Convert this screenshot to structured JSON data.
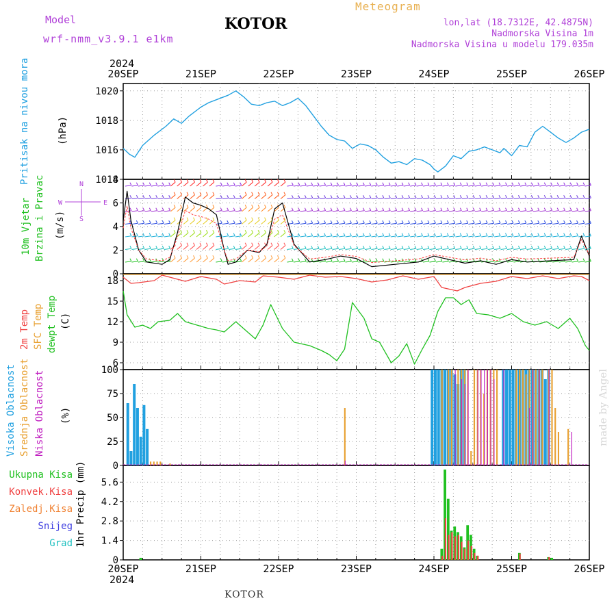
{
  "header": {
    "model_label": "Model",
    "model_name": "wrf-nmm_v3.9.1 e1km",
    "town": "KOTOR",
    "meteogram_title": "Meteogram",
    "lonlat": "lon,lat (18.7312E, 42.4875N)",
    "elevation": "Nadmorska Visina 1m",
    "model_elevation": "Nadmorska Visina u modelu 179.035m",
    "year_top": "2024",
    "year_bottom": "2024",
    "footer_town": "KOTOR",
    "made_by": "made by Angel"
  },
  "panel_labels": {
    "pressure": {
      "name": "Pritisak na nivou mora",
      "unit": "(hPa)",
      "color": "#20a0e0"
    },
    "wind": {
      "name1": "10m Vjetar",
      "name2": "Brzina i Pravac",
      "unit": "(m/s)",
      "color": "#20c020"
    },
    "compass": {
      "n": "N",
      "s": "S",
      "w": "W",
      "e": "E",
      "color": "#b040d8"
    },
    "temp": {
      "t2m": "2m Temp",
      "sfc": "SFC Temp",
      "dewpt": "dewpt Temp",
      "unit": "(C)",
      "colors": [
        "#f04040",
        "#e8a030",
        "#20c020"
      ]
    },
    "cloud": {
      "high": "Visoka Oblacnost",
      "mid": "Srednja Oblacnost",
      "low": "Niska Oblacnost",
      "unit": "(%)",
      "colors": [
        "#20a0e0",
        "#e8a030",
        "#c020c0"
      ]
    },
    "precip": {
      "unit": "1hr Precip (mm)",
      "legend": [
        {
          "label": "Ukupna Kisa",
          "color": "#20c020"
        },
        {
          "label": "Konvek.Kisa",
          "color": "#f04040"
        },
        {
          "label": "Zaledj.Kisa",
          "color": "#f08030"
        },
        {
          "label": "Snijeg",
          "color": "#4040e0"
        },
        {
          "label": "Grad",
          "color": "#20c0c0"
        }
      ]
    }
  },
  "chart_data": [
    {
      "type": "line",
      "name": "pressure",
      "x_ticks": [
        "20SEP",
        "21SEP",
        "22SEP",
        "23SEP",
        "24SEP",
        "25SEP",
        "26SEP"
      ],
      "ylim": [
        1014,
        1020.5
      ],
      "yticks": [
        1014,
        1016,
        1018,
        1020
      ],
      "grid": true,
      "x_days": [
        0,
        0.08,
        0.15,
        0.25,
        0.4,
        0.55,
        0.65,
        0.75,
        0.85,
        1.0,
        1.1,
        1.2,
        1.35,
        1.45,
        1.55,
        1.65,
        1.75,
        1.85,
        1.95,
        2.05,
        2.15,
        2.25,
        2.35,
        2.45,
        2.55,
        2.65,
        2.75,
        2.85,
        2.95,
        3.05,
        3.15,
        3.25,
        3.35,
        3.45,
        3.55,
        3.65,
        3.75,
        3.85,
        3.95,
        4.0,
        4.05,
        4.15,
        4.25,
        4.35,
        4.45,
        4.55,
        4.65,
        4.75,
        4.85,
        4.9,
        5.0,
        5.1,
        5.2,
        5.3,
        5.4,
        5.5,
        5.6,
        5.7,
        5.8,
        5.9,
        6.0
      ],
      "values": [
        1016.1,
        1015.7,
        1015.5,
        1016.3,
        1017.0,
        1017.6,
        1018.1,
        1017.8,
        1018.3,
        1018.9,
        1019.2,
        1019.4,
        1019.7,
        1020.0,
        1019.6,
        1019.1,
        1019.0,
        1019.2,
        1019.3,
        1019.0,
        1019.2,
        1019.5,
        1019.0,
        1018.3,
        1017.6,
        1017.0,
        1016.7,
        1016.6,
        1016.1,
        1016.4,
        1016.3,
        1016.0,
        1015.5,
        1015.1,
        1015.2,
        1015.0,
        1015.4,
        1015.3,
        1015.0,
        1014.7,
        1014.5,
        1014.9,
        1015.6,
        1015.4,
        1015.9,
        1016.0,
        1016.2,
        1016.0,
        1015.8,
        1016.1,
        1015.6,
        1016.3,
        1016.2,
        1017.2,
        1017.6,
        1017.2,
        1016.8,
        1016.5,
        1016.8,
        1017.2,
        1017.4
      ]
    },
    {
      "type": "line",
      "name": "wind",
      "ylim": [
        0,
        8
      ],
      "yticks": [
        0,
        2,
        4,
        6,
        8
      ],
      "grid": true,
      "x_days": [
        0,
        0.05,
        0.1,
        0.2,
        0.3,
        0.5,
        0.6,
        0.7,
        0.8,
        0.9,
        1.0,
        1.1,
        1.2,
        1.3,
        1.35,
        1.45,
        1.6,
        1.75,
        1.85,
        1.95,
        2.05,
        2.2,
        2.4,
        2.6,
        2.8,
        3.0,
        3.2,
        3.5,
        3.8,
        4.0,
        4.2,
        4.4,
        4.6,
        4.8,
        5.0,
        5.2,
        5.5,
        5.8,
        5.9,
        6.0
      ],
      "values": [
        4.5,
        7.0,
        4.5,
        2.0,
        1.0,
        0.8,
        1.2,
        3.5,
        6.5,
        6.0,
        5.8,
        5.5,
        5.0,
        2.0,
        0.8,
        1.0,
        2.0,
        1.8,
        2.5,
        5.5,
        6.0,
        2.5,
        1.0,
        1.2,
        1.5,
        1.3,
        0.6,
        0.8,
        1.0,
        1.5,
        1.2,
        0.9,
        1.1,
        0.8,
        1.2,
        1.0,
        1.1,
        1.2,
        3.2,
        1.5
      ]
    },
    {
      "type": "line",
      "name": "temperature",
      "ylim": [
        5,
        19
      ],
      "yticks": [
        6,
        9,
        12,
        15,
        18
      ],
      "grid": true,
      "series": [
        {
          "name": "2m Temp",
          "color": "#f04040",
          "x_days": [
            0,
            0.1,
            0.2,
            0.4,
            0.5,
            0.7,
            0.8,
            1.0,
            1.2,
            1.3,
            1.5,
            1.7,
            1.8,
            2.0,
            2.2,
            2.4,
            2.6,
            2.8,
            3.0,
            3.2,
            3.4,
            3.6,
            3.8,
            4.0,
            4.1,
            4.3,
            4.4,
            4.6,
            4.8,
            5.0,
            5.2,
            5.4,
            5.6,
            5.8,
            5.9,
            6.0
          ],
          "values": [
            18.5,
            17.6,
            17.7,
            18.0,
            18.8,
            18.2,
            17.9,
            18.6,
            18.2,
            17.5,
            18.0,
            17.8,
            18.7,
            18.5,
            18.2,
            18.8,
            18.5,
            18.6,
            18.3,
            17.8,
            18.1,
            18.7,
            18.2,
            18.6,
            17.0,
            16.5,
            17.0,
            17.6,
            17.9,
            18.6,
            18.3,
            18.7,
            18.3,
            18.7,
            18.6,
            18.0
          ]
        },
        {
          "name": "SFC Temp",
          "color": "#e8a030",
          "x_days": [
            0,
            1.0,
            2.0,
            3.0,
            4.0,
            5.0,
            6.0
          ],
          "values": [
            18.9,
            18.9,
            18.9,
            18.9,
            18.9,
            18.9,
            18.9
          ]
        },
        {
          "name": "dewpt Temp",
          "color": "#20c020",
          "x_days": [
            0,
            0.05,
            0.15,
            0.25,
            0.35,
            0.45,
            0.6,
            0.7,
            0.8,
            0.95,
            1.1,
            1.2,
            1.3,
            1.45,
            1.55,
            1.7,
            1.8,
            1.9,
            2.05,
            2.2,
            2.4,
            2.55,
            2.65,
            2.75,
            2.85,
            2.95,
            3.1,
            3.2,
            3.3,
            3.45,
            3.55,
            3.65,
            3.75,
            3.85,
            3.95,
            4.05,
            4.15,
            4.25,
            4.35,
            4.45,
            4.55,
            4.7,
            4.85,
            5.0,
            5.15,
            5.3,
            5.45,
            5.6,
            5.75,
            5.85,
            5.95,
            6.0
          ],
          "values": [
            16.5,
            13.0,
            11.2,
            11.5,
            11.0,
            12.0,
            12.2,
            13.2,
            12.0,
            11.5,
            11.0,
            10.8,
            10.5,
            12.0,
            11.0,
            9.5,
            11.5,
            14.5,
            11.0,
            9.0,
            8.5,
            7.8,
            7.2,
            6.3,
            8.0,
            14.8,
            12.5,
            9.5,
            9.0,
            6.0,
            7.0,
            8.8,
            5.8,
            8.0,
            10.0,
            13.5,
            15.5,
            15.5,
            14.5,
            15.2,
            13.2,
            13.0,
            12.5,
            13.2,
            12.0,
            11.5,
            12.0,
            11.0,
            12.5,
            11.0,
            8.5,
            7.8
          ]
        }
      ]
    },
    {
      "type": "bar",
      "name": "cloud_cover",
      "ylim": [
        0,
        100
      ],
      "yticks": [
        0,
        25,
        50,
        75,
        100
      ],
      "grid": true,
      "series": [
        {
          "name": "Visoka Oblacnost",
          "color": "#20a0e0",
          "x_hours": [
            1,
            2,
            3,
            4,
            5,
            6,
            7,
            95,
            96,
            97,
            98,
            99,
            100,
            101,
            102,
            103,
            104,
            105,
            117,
            118,
            119,
            120,
            121,
            122,
            123,
            124,
            125,
            126,
            127,
            128,
            129,
            130,
            131
          ],
          "values": [
            65,
            15,
            85,
            60,
            30,
            63,
            38,
            100,
            100,
            100,
            100,
            100,
            100,
            100,
            95,
            85,
            100,
            100,
            100,
            100,
            100,
            100,
            100,
            100,
            100,
            100,
            100,
            100,
            100,
            100,
            100,
            90,
            100
          ]
        },
        {
          "name": "Srednja Oblacnost",
          "color": "#e8a030",
          "x_hours": [
            8,
            9,
            10,
            11,
            14,
            68,
            98,
            100,
            101,
            103,
            104,
            105,
            106,
            107,
            108,
            109,
            110,
            111,
            112,
            113,
            114,
            115,
            121,
            122,
            123,
            124,
            125,
            126,
            127,
            128,
            129,
            131,
            132,
            133,
            134,
            137
          ],
          "values": [
            4,
            4,
            4,
            4,
            2,
            60,
            100,
            100,
            100,
            100,
            100,
            100,
            100,
            15,
            100,
            100,
            100,
            75,
            100,
            100,
            100,
            100,
            100,
            100,
            100,
            95,
            100,
            100,
            100,
            100,
            100,
            100,
            100,
            60,
            35,
            38
          ]
        },
        {
          "name": "Niska Oblacnost",
          "color": "#c020c0",
          "x_hours": [
            68,
            102,
            104,
            105,
            106,
            109,
            110,
            111,
            112,
            113,
            114,
            117,
            125,
            126,
            128,
            131,
            138
          ],
          "values": [
            5,
            100,
            90,
            85,
            100,
            100,
            100,
            100,
            100,
            100,
            90,
            100,
            60,
            100,
            100,
            100,
            35
          ]
        }
      ]
    },
    {
      "type": "bar",
      "name": "precipitation",
      "ylim": [
        0,
        6.8
      ],
      "yticks": [
        0,
        1.4,
        2.8,
        4.2,
        5.6
      ],
      "grid": true,
      "series": [
        {
          "name": "Ukupna Kisa",
          "color": "#20c020",
          "x_hours": [
            5,
            98,
            99,
            100,
            101,
            102,
            103,
            104,
            105,
            106,
            107,
            108,
            109,
            122,
            131,
            132
          ],
          "values": [
            0.15,
            0.8,
            6.5,
            4.4,
            2.1,
            2.4,
            2.0,
            1.7,
            0.9,
            2.5,
            1.8,
            0.8,
            0.3,
            0.5,
            0.2,
            0.15
          ]
        },
        {
          "name": "Konvek.Kisa",
          "color": "#f04040",
          "x_hours": [
            98,
            99,
            100,
            101,
            102,
            103,
            104,
            105,
            106,
            107,
            108,
            109,
            122,
            131
          ],
          "values": [
            0.3,
            3.0,
            1.8,
            2.0,
            1.7,
            1.8,
            1.3,
            0.8,
            1.4,
            1.0,
            0.5,
            0.3,
            0.45,
            0.2
          ]
        },
        {
          "name": "Zaledj.Kisa",
          "color": "#f08030",
          "x_hours": [],
          "values": []
        },
        {
          "name": "Snijeg",
          "color": "#4040e0",
          "x_hours": [],
          "values": []
        },
        {
          "name": "Grad",
          "color": "#20c0c0",
          "x_hours": [],
          "values": []
        }
      ]
    }
  ]
}
